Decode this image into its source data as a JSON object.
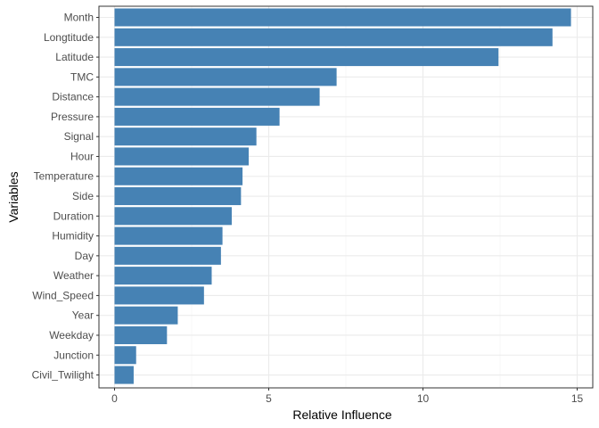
{
  "chart_data": {
    "type": "bar",
    "orientation": "horizontal",
    "title": "",
    "xlabel": "Relative Influence",
    "ylabel": "Variables",
    "xlim": [
      0,
      15.2
    ],
    "xticks": [
      0,
      5,
      10,
      15
    ],
    "grid": true,
    "legend": "none",
    "bar_color": "#4682B4",
    "categories": [
      "Month",
      "Longtitude",
      "Latitude",
      "TMC",
      "Distance",
      "Pressure",
      "Signal",
      "Hour",
      "Temperature",
      "Side",
      "Duration",
      "Humidity",
      "Day",
      "Weather",
      "Wind_Speed",
      "Year",
      "Weekday",
      "Junction",
      "Civil_Twilight"
    ],
    "values": [
      14.8,
      14.2,
      12.45,
      7.2,
      6.65,
      5.35,
      4.6,
      4.35,
      4.15,
      4.1,
      3.8,
      3.5,
      3.45,
      3.15,
      2.9,
      2.05,
      1.7,
      0.7,
      0.62
    ]
  }
}
